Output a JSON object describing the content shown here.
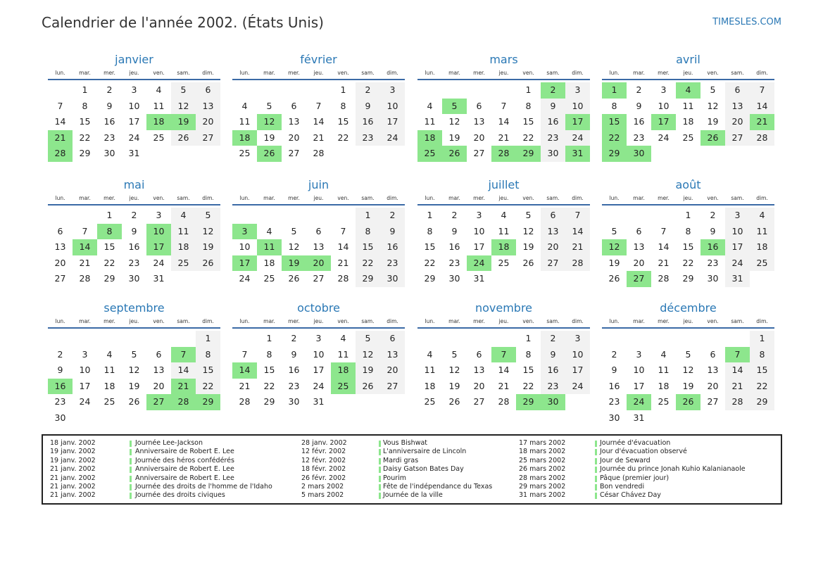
{
  "title": "Calendrier de l'année 2002. (États Unis)",
  "brand": "TIMESLES.COM",
  "colors": {
    "accent": "#2a78b5",
    "holiday": "#8de68d",
    "weekend": "#f2f2f2",
    "rule": "#3b6aa6"
  },
  "weekdays": [
    "lun.",
    "mar.",
    "mer.",
    "jeu.",
    "ven.",
    "sam.",
    "dim."
  ],
  "months": [
    {
      "name": "janvier",
      "start": 1,
      "days": 31,
      "holidays": [
        18,
        19,
        21,
        28
      ]
    },
    {
      "name": "février",
      "start": 4,
      "days": 28,
      "holidays": [
        12,
        18,
        26
      ]
    },
    {
      "name": "mars",
      "start": 4,
      "days": 31,
      "holidays": [
        2,
        5,
        17,
        18,
        25,
        26,
        28,
        29,
        31
      ]
    },
    {
      "name": "avril",
      "start": 0,
      "days": 30,
      "holidays": [
        1,
        4,
        15,
        17,
        21,
        22,
        26,
        29,
        30
      ]
    },
    {
      "name": "mai",
      "start": 2,
      "days": 31,
      "holidays": [
        8,
        10,
        14,
        17
      ]
    },
    {
      "name": "juin",
      "start": 5,
      "days": 30,
      "holidays": [
        3,
        11,
        17,
        19,
        20
      ]
    },
    {
      "name": "juillet",
      "start": 0,
      "days": 31,
      "holidays": [
        18,
        24
      ]
    },
    {
      "name": "août",
      "start": 3,
      "days": 31,
      "holidays": [
        12,
        16,
        27
      ]
    },
    {
      "name": "septembre",
      "start": 6,
      "days": 30,
      "holidays": [
        7,
        16,
        21,
        27,
        28,
        29
      ]
    },
    {
      "name": "octobre",
      "start": 1,
      "days": 31,
      "holidays": [
        14,
        18,
        25
      ]
    },
    {
      "name": "novembre",
      "start": 4,
      "days": 30,
      "holidays": [
        7,
        29,
        30
      ]
    },
    {
      "name": "décembre",
      "start": 6,
      "days": 31,
      "holidays": [
        7,
        24,
        26
      ]
    }
  ],
  "holiday_list": [
    [
      {
        "date": "18 janv. 2002",
        "name": "Journée Lee-Jackson"
      },
      {
        "date": "19 janv. 2002",
        "name": "Anniversaire de Robert E. Lee"
      },
      {
        "date": "19 janv. 2002",
        "name": "Journée des héros confédérés"
      },
      {
        "date": "21 janv. 2002",
        "name": "Anniversaire de Robert E. Lee"
      },
      {
        "date": "21 janv. 2002",
        "name": "Anniversaire de Robert E. Lee"
      },
      {
        "date": "21 janv. 2002",
        "name": "Journée des droits de l'homme de l'Idaho"
      },
      {
        "date": "21 janv. 2002",
        "name": "Journée des droits civiques"
      }
    ],
    [
      {
        "date": "28 janv. 2002",
        "name": "Vous Bishwat"
      },
      {
        "date": "12 févr. 2002",
        "name": "L'anniversaire de Lincoln"
      },
      {
        "date": "12 févr. 2002",
        "name": "Mardi gras"
      },
      {
        "date": "18 févr. 2002",
        "name": "Daisy Gatson Bates Day"
      },
      {
        "date": "26 févr. 2002",
        "name": "Pourim"
      },
      {
        "date": "2 mars 2002",
        "name": "Fête de l'indépendance du Texas"
      },
      {
        "date": "5 mars 2002",
        "name": "Journée de la ville"
      }
    ],
    [
      {
        "date": "17 mars 2002",
        "name": "Journée d'évacuation"
      },
      {
        "date": "18 mars 2002",
        "name": "Jour d'évacuation observé"
      },
      {
        "date": "25 mars 2002",
        "name": "Jour de Seward"
      },
      {
        "date": "26 mars 2002",
        "name": "Journée du prince Jonah Kuhio Kalanianaole"
      },
      {
        "date": "28 mars 2002",
        "name": "Pâque (premier jour)"
      },
      {
        "date": "29 mars 2002",
        "name": "Bon vendredi"
      },
      {
        "date": "31 mars 2002",
        "name": "César Chávez Day"
      }
    ]
  ]
}
